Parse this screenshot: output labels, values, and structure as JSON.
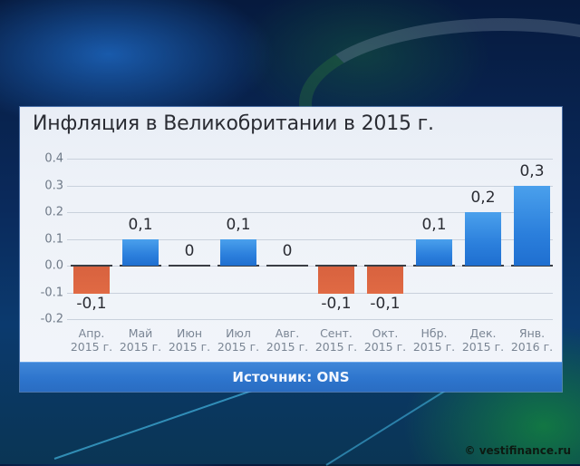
{
  "title": "Инфляция в Великобритании в 2015 г.",
  "source": "Источник: ONS",
  "copyright": "© vestifinance.ru",
  "colors": {
    "positive_bar": "#2b7fdc",
    "negative_bar": "#dc6541",
    "footer": "#2d74cc",
    "panel": "#eef2f8"
  },
  "y_ticks": [
    "0.4",
    "0.3",
    "0.2",
    "0.1",
    "0.0",
    "-0.1",
    "-0.2"
  ],
  "bars": [
    {
      "label_line1": "Апр.",
      "label_line2": "2015 г.",
      "value": -0.1,
      "value_label": "-0,1"
    },
    {
      "label_line1": "Май",
      "label_line2": "2015 г.",
      "value": 0.1,
      "value_label": "0,1"
    },
    {
      "label_line1": "Июн",
      "label_line2": "2015 г.",
      "value": 0,
      "value_label": "0"
    },
    {
      "label_line1": "Июл",
      "label_line2": "2015 г.",
      "value": 0.1,
      "value_label": "0,1"
    },
    {
      "label_line1": "Авг.",
      "label_line2": "2015 г.",
      "value": 0,
      "value_label": "0"
    },
    {
      "label_line1": "Сент.",
      "label_line2": "2015 г.",
      "value": -0.1,
      "value_label": "-0,1"
    },
    {
      "label_line1": "Окт.",
      "label_line2": "2015 г.",
      "value": -0.1,
      "value_label": "-0,1"
    },
    {
      "label_line1": "Нбр.",
      "label_line2": "2015 г.",
      "value": 0.1,
      "value_label": "0,1"
    },
    {
      "label_line1": "Дек.",
      "label_line2": "2015 г.",
      "value": 0.2,
      "value_label": "0,2"
    },
    {
      "label_line1": "Янв.",
      "label_line2": "2016 г.",
      "value": 0.3,
      "value_label": "0,3"
    }
  ],
  "chart_data": {
    "type": "bar",
    "title": "Инфляция в Великобритании в 2015 г.",
    "categories": [
      "Апр. 2015 г.",
      "Май 2015 г.",
      "Июн 2015 г.",
      "Июл 2015 г.",
      "Авг. 2015 г.",
      "Сент. 2015 г.",
      "Окт. 2015 г.",
      "Нбр. 2015 г.",
      "Дек. 2015 г.",
      "Янв. 2016 г."
    ],
    "values": [
      -0.1,
      0.1,
      0,
      0.1,
      0,
      -0.1,
      -0.1,
      0.1,
      0.2,
      0.3
    ],
    "data_labels": [
      "-0,1",
      "0,1",
      "0",
      "0,1",
      "0",
      "-0,1",
      "-0,1",
      "0,1",
      "0,2",
      "0,3"
    ],
    "xlabel": "",
    "ylabel": "",
    "ylim": [
      -0.2,
      0.4
    ],
    "y_ticks": [
      0.4,
      0.3,
      0.2,
      0.1,
      0.0,
      -0.1,
      -0.2
    ],
    "grid": true,
    "legend": null,
    "source": "Источник: ONS",
    "colors": {
      "positive": "#2b7fdc",
      "negative": "#dc6541"
    }
  }
}
